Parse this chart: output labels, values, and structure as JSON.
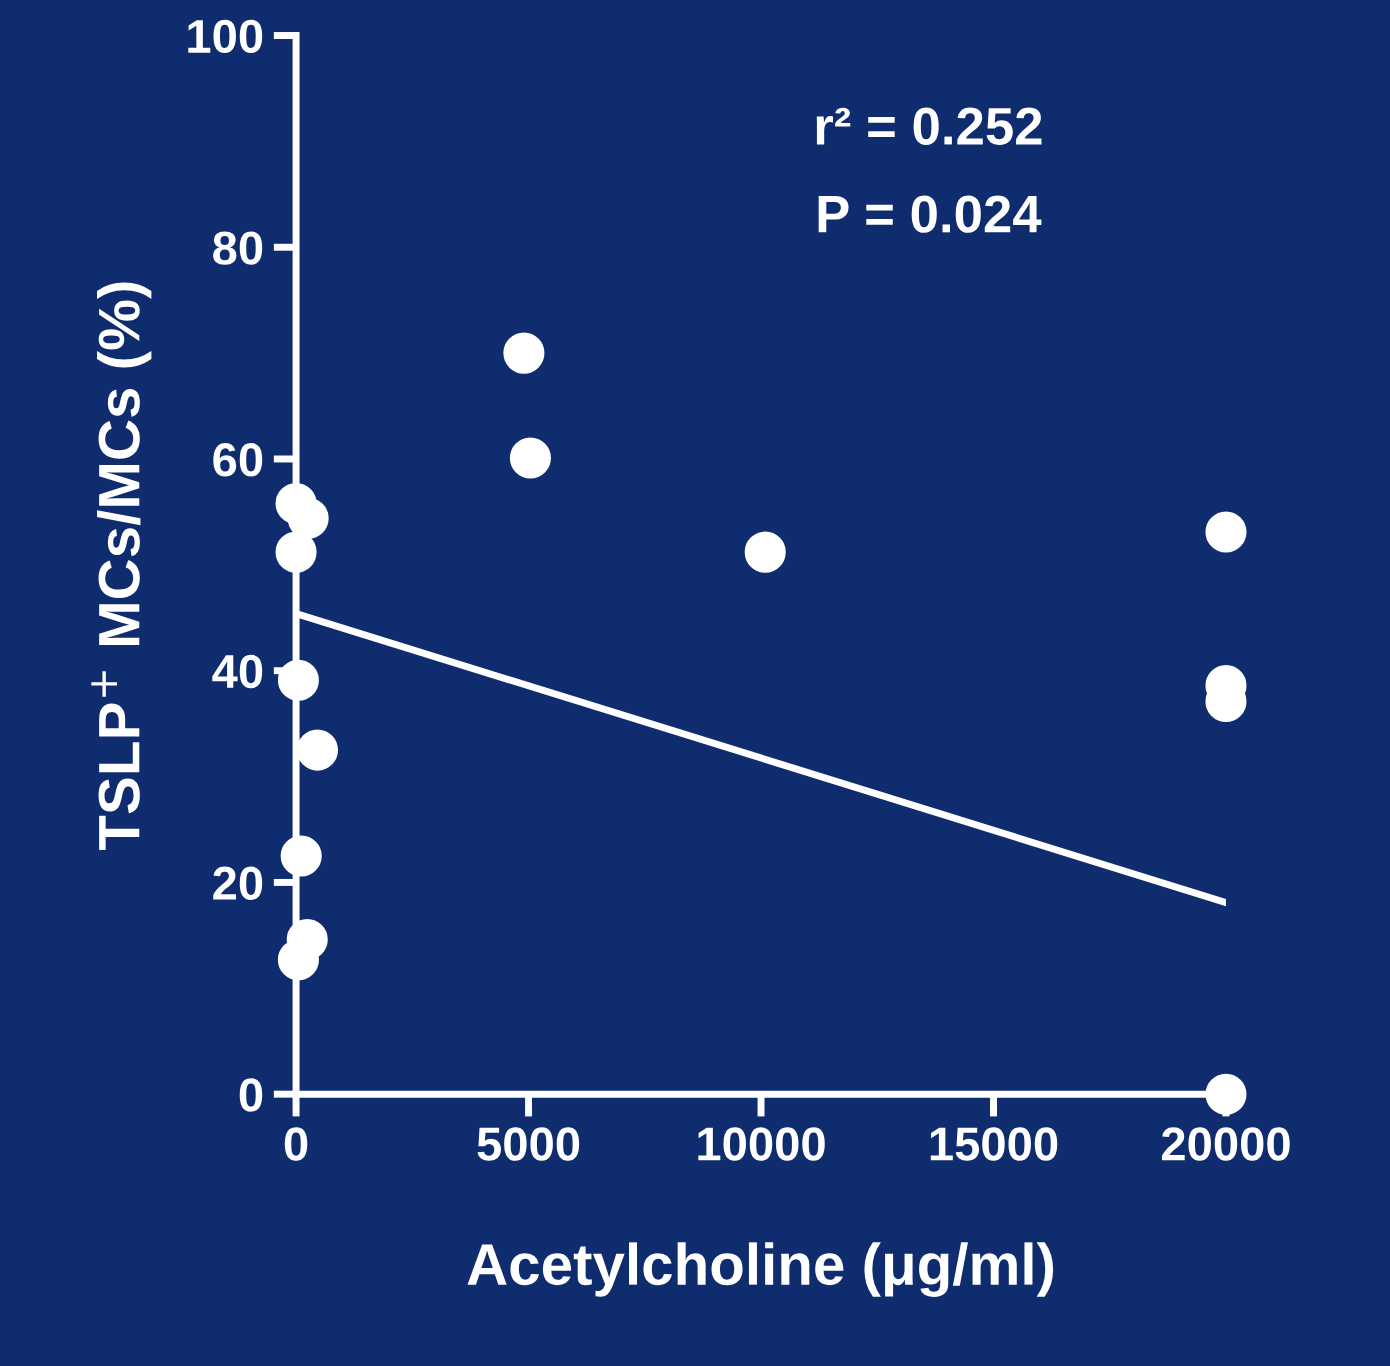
{
  "chart_data": {
    "type": "scatter",
    "xlabel": "Acetylcholine (μg/ml)",
    "ylabel": "TSLP$^{+}$ MCs/MCs (%)",
    "xlim": [
      0,
      20000
    ],
    "ylim": [
      0,
      100
    ],
    "xticks": [
      0,
      5000,
      10000,
      15000,
      20000
    ],
    "yticks": [
      0,
      20,
      40,
      60,
      80,
      100
    ],
    "grid": false,
    "annotations": [
      "r² = 0.252",
      "P = 0.024"
    ],
    "series": [
      {
        "marker": "circle",
        "color": "#ffffff",
        "x": [
          0,
          0,
          50,
          110,
          50,
          240,
          260,
          460,
          4900,
          5040,
          10090,
          20000,
          20000,
          20000,
          20000
        ],
        "values": [
          55.8,
          51.2,
          39.1,
          22.5,
          12.7,
          14.6,
          54.4,
          32.5,
          70,
          60.1,
          51.2,
          53.1,
          38.6,
          37.1,
          0
        ]
      },
      {
        "type": "line",
        "color": "#ffffff",
        "x": [
          0,
          20000
        ],
        "values": [
          45.4,
          18.1
        ],
        "line_style": "solid"
      }
    ]
  }
}
